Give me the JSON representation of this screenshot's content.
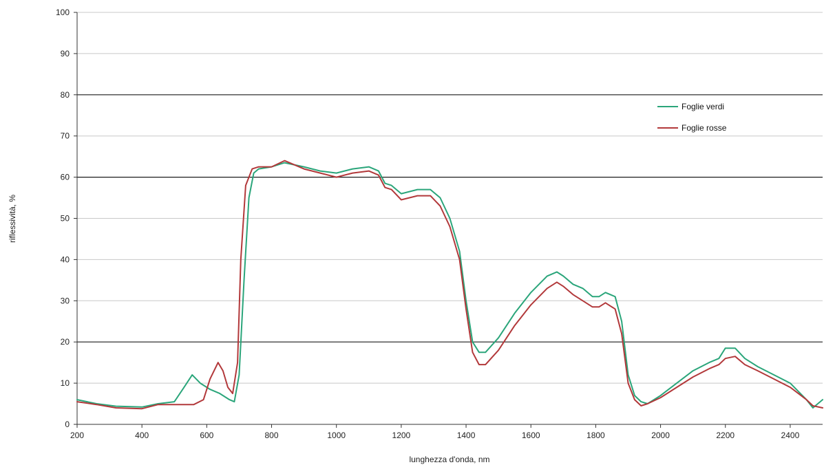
{
  "chart_data": {
    "type": "line",
    "title": "",
    "xlabel": "lunghezza d'onda, nm",
    "ylabel": "riflessività, %",
    "xlim": [
      200,
      2500
    ],
    "ylim": [
      0,
      100
    ],
    "x_ticks": [
      "200",
      "400",
      "600",
      "800",
      "1000",
      "1200",
      "1400",
      "1600",
      "1800",
      "2000",
      "2200",
      "2400"
    ],
    "y_ticks": [
      "0",
      "10",
      "20",
      "30",
      "40",
      "50",
      "60",
      "70",
      "80",
      "90",
      "100"
    ],
    "emphasized_gridlines": [
      20,
      60,
      80
    ],
    "grid": true,
    "legend_position": "top-right",
    "series": [
      {
        "name": "Foglie verdi",
        "color": "#2aa57a",
        "points": [
          [
            200,
            6
          ],
          [
            260,
            5
          ],
          [
            320,
            4.4
          ],
          [
            400,
            4.2
          ],
          [
            450,
            5
          ],
          [
            500,
            5.5
          ],
          [
            530,
            9
          ],
          [
            555,
            12
          ],
          [
            580,
            10
          ],
          [
            610,
            8.5
          ],
          [
            640,
            7.5
          ],
          [
            670,
            6
          ],
          [
            685,
            5.5
          ],
          [
            700,
            12
          ],
          [
            715,
            35
          ],
          [
            730,
            55
          ],
          [
            745,
            61
          ],
          [
            760,
            62
          ],
          [
            800,
            62.5
          ],
          [
            840,
            63.5
          ],
          [
            900,
            62.5
          ],
          [
            950,
            61.5
          ],
          [
            1000,
            61
          ],
          [
            1050,
            62
          ],
          [
            1100,
            62.5
          ],
          [
            1130,
            61.5
          ],
          [
            1150,
            58.5
          ],
          [
            1170,
            58
          ],
          [
            1200,
            56
          ],
          [
            1250,
            57
          ],
          [
            1290,
            57
          ],
          [
            1320,
            55
          ],
          [
            1350,
            50
          ],
          [
            1380,
            42
          ],
          [
            1400,
            30
          ],
          [
            1420,
            20
          ],
          [
            1440,
            17.5
          ],
          [
            1460,
            17.5
          ],
          [
            1500,
            21
          ],
          [
            1550,
            27
          ],
          [
            1600,
            32
          ],
          [
            1650,
            36
          ],
          [
            1680,
            37
          ],
          [
            1700,
            36
          ],
          [
            1730,
            34
          ],
          [
            1760,
            33
          ],
          [
            1790,
            31
          ],
          [
            1810,
            31
          ],
          [
            1830,
            32
          ],
          [
            1860,
            31
          ],
          [
            1880,
            25
          ],
          [
            1900,
            12
          ],
          [
            1920,
            7
          ],
          [
            1940,
            5.5
          ],
          [
            1960,
            5
          ],
          [
            2000,
            7
          ],
          [
            2050,
            10
          ],
          [
            2100,
            13
          ],
          [
            2150,
            15
          ],
          [
            2180,
            16
          ],
          [
            2200,
            18.5
          ],
          [
            2230,
            18.5
          ],
          [
            2260,
            16
          ],
          [
            2300,
            14
          ],
          [
            2350,
            12
          ],
          [
            2400,
            10
          ],
          [
            2450,
            6
          ],
          [
            2470,
            4
          ],
          [
            2500,
            6
          ]
        ]
      },
      {
        "name": "Foglie rosse",
        "color": "#b2383a",
        "points": [
          [
            200,
            5.5
          ],
          [
            260,
            4.8
          ],
          [
            320,
            4
          ],
          [
            400,
            3.8
          ],
          [
            450,
            4.8
          ],
          [
            500,
            4.8
          ],
          [
            560,
            4.8
          ],
          [
            590,
            6
          ],
          [
            610,
            11
          ],
          [
            635,
            15
          ],
          [
            650,
            13
          ],
          [
            665,
            9
          ],
          [
            680,
            7.5
          ],
          [
            695,
            15
          ],
          [
            705,
            40
          ],
          [
            720,
            58
          ],
          [
            740,
            62
          ],
          [
            760,
            62.5
          ],
          [
            800,
            62.5
          ],
          [
            840,
            64
          ],
          [
            900,
            62
          ],
          [
            950,
            61
          ],
          [
            1000,
            60
          ],
          [
            1050,
            61
          ],
          [
            1100,
            61.5
          ],
          [
            1130,
            60.5
          ],
          [
            1150,
            57.5
          ],
          [
            1170,
            57
          ],
          [
            1200,
            54.5
          ],
          [
            1250,
            55.5
          ],
          [
            1290,
            55.5
          ],
          [
            1320,
            53
          ],
          [
            1350,
            48
          ],
          [
            1380,
            40
          ],
          [
            1400,
            28
          ],
          [
            1420,
            17.5
          ],
          [
            1440,
            14.5
          ],
          [
            1460,
            14.5
          ],
          [
            1500,
            18
          ],
          [
            1550,
            24
          ],
          [
            1600,
            29
          ],
          [
            1650,
            33
          ],
          [
            1680,
            34.5
          ],
          [
            1700,
            33.5
          ],
          [
            1730,
            31.5
          ],
          [
            1760,
            30
          ],
          [
            1790,
            28.5
          ],
          [
            1810,
            28.5
          ],
          [
            1830,
            29.5
          ],
          [
            1860,
            28
          ],
          [
            1880,
            22
          ],
          [
            1900,
            10
          ],
          [
            1920,
            6
          ],
          [
            1940,
            4.5
          ],
          [
            1960,
            5
          ],
          [
            2000,
            6.5
          ],
          [
            2050,
            9
          ],
          [
            2100,
            11.5
          ],
          [
            2150,
            13.5
          ],
          [
            2180,
            14.5
          ],
          [
            2200,
            16
          ],
          [
            2230,
            16.5
          ],
          [
            2260,
            14.5
          ],
          [
            2300,
            13
          ],
          [
            2350,
            11
          ],
          [
            2400,
            9
          ],
          [
            2450,
            6
          ],
          [
            2470,
            4.5
          ],
          [
            2500,
            4
          ]
        ]
      }
    ]
  }
}
